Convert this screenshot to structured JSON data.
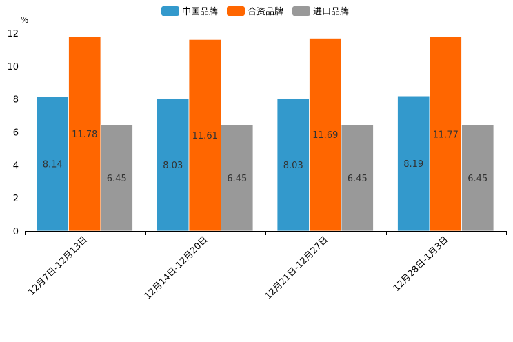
{
  "chart_data": {
    "type": "bar",
    "title": "",
    "xlabel": "",
    "ylabel": "%",
    "ylim": [
      0,
      12
    ],
    "yticks": [
      0,
      2,
      4,
      6,
      8,
      10,
      12
    ],
    "grid": false,
    "legend_position": "top-center",
    "categories": [
      "12月7日-12月13日",
      "12月14日-12月20日",
      "12月21日-12月27日",
      "12月28日-1月3日"
    ],
    "series": [
      {
        "name": "中国品牌",
        "color": "#3399cc",
        "values": [
          8.14,
          8.03,
          8.03,
          8.19
        ]
      },
      {
        "name": "合资品牌",
        "color": "#ff6600",
        "values": [
          11.78,
          11.61,
          11.69,
          11.77
        ]
      },
      {
        "name": "进口品牌",
        "color": "#999999",
        "values": [
          6.45,
          6.45,
          6.45,
          6.45
        ]
      }
    ]
  }
}
